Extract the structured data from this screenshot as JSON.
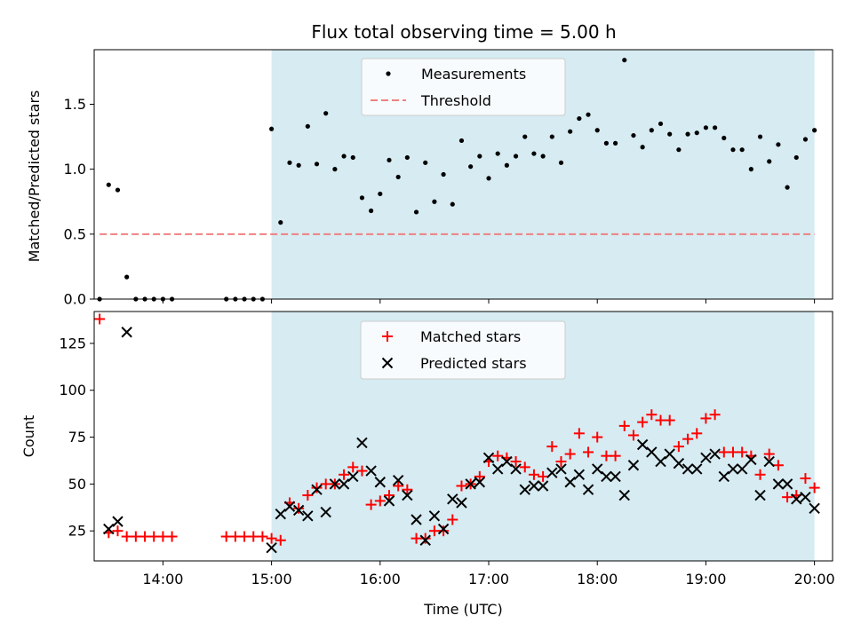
{
  "title": "Flux total observing time = 5.00 h",
  "colors": {
    "observing_band": "#add8e6",
    "measurement": "#000000",
    "threshold": "#f08080",
    "matched": "#ff0000",
    "predicted": "#000000"
  },
  "chart_data": [
    {
      "type": "scatter",
      "ylabel": "Matched/Predicted stars",
      "xlabel": "",
      "xlim": [
        "13:22",
        "20:10"
      ],
      "ylim": [
        0,
        1.92
      ],
      "yticks": [
        "0.0",
        "0.5",
        "1.0",
        "1.5"
      ],
      "ytick_values": [
        0,
        0.5,
        1.0,
        1.5
      ],
      "legend": {
        "placement": "top-center",
        "entries": [
          "Measurements",
          "Threshold"
        ]
      },
      "shaded_span": [
        "15:00",
        "20:00"
      ],
      "threshold": {
        "name": "Threshold",
        "value": 0.5,
        "x_range": [
          "13:25",
          "20:00"
        ]
      },
      "series": [
        {
          "name": "Measurements",
          "points": [
            [
              "13:25",
              0.0
            ],
            [
              "13:30",
              0.88
            ],
            [
              "13:35",
              0.84
            ],
            [
              "13:40",
              0.17
            ],
            [
              "13:45",
              0.0
            ],
            [
              "13:50",
              0.0
            ],
            [
              "13:55",
              0.0
            ],
            [
              "14:00",
              0.0
            ],
            [
              "14:05",
              0.0
            ],
            [
              "14:35",
              0.0
            ],
            [
              "14:40",
              0.0
            ],
            [
              "14:45",
              0.0
            ],
            [
              "14:50",
              0.0
            ],
            [
              "14:55",
              0.0
            ],
            [
              "15:00",
              1.31
            ],
            [
              "15:05",
              0.59
            ],
            [
              "15:10",
              1.05
            ],
            [
              "15:15",
              1.03
            ],
            [
              "15:20",
              1.33
            ],
            [
              "15:25",
              1.04
            ],
            [
              "15:30",
              1.43
            ],
            [
              "15:35",
              1.0
            ],
            [
              "15:40",
              1.1
            ],
            [
              "15:45",
              1.09
            ],
            [
              "15:50",
              0.78
            ],
            [
              "15:55",
              0.68
            ],
            [
              "16:00",
              0.81
            ],
            [
              "16:05",
              1.07
            ],
            [
              "16:10",
              0.94
            ],
            [
              "16:15",
              1.09
            ],
            [
              "16:20",
              0.67
            ],
            [
              "16:25",
              1.05
            ],
            [
              "16:30",
              0.75
            ],
            [
              "16:35",
              0.96
            ],
            [
              "16:40",
              0.73
            ],
            [
              "16:45",
              1.22
            ],
            [
              "16:50",
              1.02
            ],
            [
              "16:55",
              1.1
            ],
            [
              "17:00",
              0.93
            ],
            [
              "17:05",
              1.12
            ],
            [
              "17:10",
              1.03
            ],
            [
              "17:15",
              1.1
            ],
            [
              "17:20",
              1.25
            ],
            [
              "17:25",
              1.12
            ],
            [
              "17:30",
              1.1
            ],
            [
              "17:35",
              1.25
            ],
            [
              "17:40",
              1.05
            ],
            [
              "17:45",
              1.29
            ],
            [
              "17:50",
              1.39
            ],
            [
              "17:55",
              1.42
            ],
            [
              "18:00",
              1.3
            ],
            [
              "18:05",
              1.2
            ],
            [
              "18:10",
              1.2
            ],
            [
              "18:15",
              1.84
            ],
            [
              "18:20",
              1.26
            ],
            [
              "18:25",
              1.17
            ],
            [
              "18:30",
              1.3
            ],
            [
              "18:35",
              1.35
            ],
            [
              "18:40",
              1.27
            ],
            [
              "18:45",
              1.15
            ],
            [
              "18:50",
              1.27
            ],
            [
              "18:55",
              1.28
            ],
            [
              "19:00",
              1.32
            ],
            [
              "19:05",
              1.32
            ],
            [
              "19:10",
              1.24
            ],
            [
              "19:15",
              1.15
            ],
            [
              "19:20",
              1.15
            ],
            [
              "19:25",
              1.0
            ],
            [
              "19:30",
              1.25
            ],
            [
              "19:35",
              1.06
            ],
            [
              "19:40",
              1.19
            ],
            [
              "19:45",
              0.86
            ],
            [
              "19:50",
              1.09
            ],
            [
              "19:55",
              1.23
            ],
            [
              "20:00",
              1.3
            ]
          ]
        }
      ]
    },
    {
      "type": "scatter",
      "ylabel": "Count",
      "xlabel": "Time (UTC)",
      "xlim": [
        "13:22",
        "20:10"
      ],
      "ylim": [
        9,
        142
      ],
      "yticks": [
        "25",
        "50",
        "75",
        "100",
        "125"
      ],
      "ytick_values": [
        25,
        50,
        75,
        100,
        125
      ],
      "xticks": [
        "14:00",
        "15:00",
        "16:00",
        "17:00",
        "18:00",
        "19:00",
        "20:00"
      ],
      "legend": {
        "placement": "top-center",
        "entries": [
          "Matched stars",
          "Predicted stars"
        ]
      },
      "shaded_span": [
        "15:00",
        "20:00"
      ],
      "series": [
        {
          "name": "Matched stars",
          "marker": "plus",
          "points": [
            [
              "13:25",
              138
            ],
            [
              "13:30",
              24
            ],
            [
              "13:35",
              25
            ],
            [
              "13:40",
              22
            ],
            [
              "13:45",
              22
            ],
            [
              "13:50",
              22
            ],
            [
              "13:55",
              22
            ],
            [
              "14:00",
              22
            ],
            [
              "14:05",
              22
            ],
            [
              "14:35",
              22
            ],
            [
              "14:40",
              22
            ],
            [
              "14:45",
              22
            ],
            [
              "14:50",
              22
            ],
            [
              "14:55",
              22
            ],
            [
              "15:00",
              21
            ],
            [
              "15:05",
              20
            ],
            [
              "15:10",
              40
            ],
            [
              "15:15",
              37
            ],
            [
              "15:20",
              44
            ],
            [
              "15:25",
              48
            ],
            [
              "15:30",
              50
            ],
            [
              "15:35",
              50
            ],
            [
              "15:40",
              55
            ],
            [
              "15:45",
              59
            ],
            [
              "15:50",
              57
            ],
            [
              "15:55",
              39
            ],
            [
              "16:00",
              41
            ],
            [
              "16:05",
              44
            ],
            [
              "16:10",
              49
            ],
            [
              "16:15",
              47
            ],
            [
              "16:20",
              21
            ],
            [
              "16:25",
              21
            ],
            [
              "16:30",
              25
            ],
            [
              "16:35",
              25
            ],
            [
              "16:40",
              31
            ],
            [
              "16:45",
              49
            ],
            [
              "16:50",
              50
            ],
            [
              "16:55",
              54
            ],
            [
              "17:00",
              62
            ],
            [
              "17:05",
              65
            ],
            [
              "17:10",
              64
            ],
            [
              "17:15",
              62
            ],
            [
              "17:20",
              59
            ],
            [
              "17:25",
              55
            ],
            [
              "17:30",
              54
            ],
            [
              "17:35",
              70
            ],
            [
              "17:40",
              62
            ],
            [
              "17:45",
              66
            ],
            [
              "17:50",
              77
            ],
            [
              "17:55",
              67
            ],
            [
              "18:00",
              75
            ],
            [
              "18:05",
              65
            ],
            [
              "18:10",
              65
            ],
            [
              "18:15",
              81
            ],
            [
              "18:20",
              76
            ],
            [
              "18:25",
              83
            ],
            [
              "18:30",
              87
            ],
            [
              "18:35",
              84
            ],
            [
              "18:40",
              84
            ],
            [
              "18:45",
              70
            ],
            [
              "18:50",
              74
            ],
            [
              "18:55",
              77
            ],
            [
              "19:00",
              85
            ],
            [
              "19:05",
              87
            ],
            [
              "19:10",
              67
            ],
            [
              "19:15",
              67
            ],
            [
              "19:20",
              67
            ],
            [
              "19:25",
              65
            ],
            [
              "19:30",
              55
            ],
            [
              "19:35",
              66
            ],
            [
              "19:40",
              60
            ],
            [
              "19:45",
              43
            ],
            [
              "19:50",
              44
            ],
            [
              "19:55",
              53
            ],
            [
              "20:00",
              48
            ]
          ]
        },
        {
          "name": "Predicted stars",
          "marker": "x",
          "points": [
            [
              "13:30",
              26
            ],
            [
              "13:35",
              30
            ],
            [
              "13:40",
              131
            ],
            [
              "15:00",
              16
            ],
            [
              "15:05",
              34
            ],
            [
              "15:10",
              38
            ],
            [
              "15:15",
              36
            ],
            [
              "15:20",
              33
            ],
            [
              "15:25",
              47
            ],
            [
              "15:30",
              35
            ],
            [
              "15:35",
              50
            ],
            [
              "15:40",
              50
            ],
            [
              "15:45",
              54
            ],
            [
              "15:50",
              72
            ],
            [
              "15:55",
              57
            ],
            [
              "16:00",
              51
            ],
            [
              "16:05",
              41
            ],
            [
              "16:10",
              52
            ],
            [
              "16:15",
              44
            ],
            [
              "16:20",
              31
            ],
            [
              "16:25",
              20
            ],
            [
              "16:30",
              33
            ],
            [
              "16:35",
              26
            ],
            [
              "16:40",
              42
            ],
            [
              "16:45",
              40
            ],
            [
              "16:50",
              50
            ],
            [
              "16:55",
              51
            ],
            [
              "17:00",
              64
            ],
            [
              "17:05",
              58
            ],
            [
              "17:10",
              62
            ],
            [
              "17:15",
              58
            ],
            [
              "17:20",
              47
            ],
            [
              "17:25",
              49
            ],
            [
              "17:30",
              49
            ],
            [
              "17:35",
              56
            ],
            [
              "17:40",
              58
            ],
            [
              "17:45",
              51
            ],
            [
              "17:50",
              55
            ],
            [
              "17:55",
              47
            ],
            [
              "18:00",
              58
            ],
            [
              "18:05",
              54
            ],
            [
              "18:10",
              54
            ],
            [
              "18:15",
              44
            ],
            [
              "18:20",
              60
            ],
            [
              "18:25",
              71
            ],
            [
              "18:30",
              67
            ],
            [
              "18:35",
              62
            ],
            [
              "18:40",
              66
            ],
            [
              "18:45",
              61
            ],
            [
              "18:50",
              58
            ],
            [
              "18:55",
              58
            ],
            [
              "19:00",
              64
            ],
            [
              "19:05",
              66
            ],
            [
              "19:10",
              54
            ],
            [
              "19:15",
              58
            ],
            [
              "19:20",
              58
            ],
            [
              "19:25",
              63
            ],
            [
              "19:30",
              44
            ],
            [
              "19:35",
              62
            ],
            [
              "19:40",
              50
            ],
            [
              "19:45",
              50
            ],
            [
              "19:50",
              42
            ],
            [
              "19:55",
              43
            ],
            [
              "20:00",
              37
            ]
          ]
        }
      ]
    }
  ]
}
